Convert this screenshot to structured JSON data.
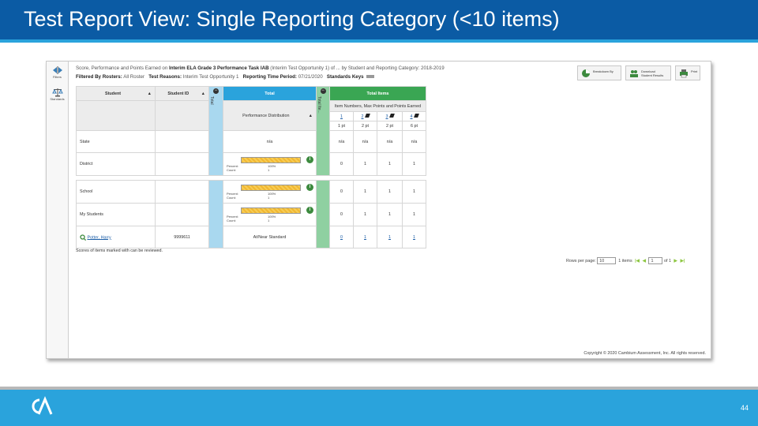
{
  "slide": {
    "title": "Test Report View: Single Reporting Category (<10 items)",
    "page_number": "44"
  },
  "app": {
    "rail": [
      {
        "label": "Filters"
      },
      {
        "label": "Standards"
      }
    ],
    "header_line1": {
      "prefix": "Score, Performance and Points Earned on",
      "test": "Interim ELA Grade 3 Performance Task IAB",
      "suffix": "(Interim Test Opportunity 1) of ... by Student and Reporting Category: 2018-2019"
    },
    "header_line2": {
      "filtered_label": "Filtered By Rosters:",
      "filtered_value": "All Roster",
      "reasons_label": "Test Reasons:",
      "reasons_value": "Interim Test Opportunity 1",
      "period_label": "Reporting Time Period:",
      "period_value": "07/21/2020",
      "keys_label": "Standards Keys"
    },
    "toolbar": {
      "breakdown": "Breakdown By",
      "download_line1": "Download",
      "download_line2": "Student Results",
      "print": "Print"
    },
    "table": {
      "col_student": "Student",
      "col_student_id": "Student ID",
      "col_total": "Total",
      "col_total_items": "Total Items",
      "strip_total": "Total",
      "strip_items": "Total Ite...",
      "perf_dist": "Performance Distribution",
      "item_header": "Item Numbers, Max Points and Points Earned",
      "items": [
        {
          "num": "1",
          "pts": "1 pt"
        },
        {
          "num": "2",
          "pts": "2 pt"
        },
        {
          "num": "3",
          "pts": "2 pt"
        },
        {
          "num": "4",
          "pts": "6 pt"
        }
      ],
      "rows": [
        {
          "label": "State",
          "sid": "",
          "total": "n/a",
          "vals": [
            "n/a",
            "n/a",
            "n/a",
            "n/a"
          ],
          "bar": false
        },
        {
          "label": "District",
          "sid": "",
          "percent": "100%",
          "count": "1",
          "vals": [
            "0",
            "1",
            "1",
            "1"
          ],
          "bar": true
        },
        {
          "label": "School",
          "sid": "",
          "percent": "100%",
          "count": "1",
          "vals": [
            "0",
            "1",
            "1",
            "1"
          ],
          "bar": true
        },
        {
          "label": "My Students",
          "sid": "",
          "percent": "100%",
          "count": "1",
          "vals": [
            "0",
            "1",
            "1",
            "1"
          ],
          "bar": true
        },
        {
          "label": "Potter, Harry",
          "sid": "9999611",
          "total": "At/Near Standard",
          "vals": [
            "0",
            "1",
            "1",
            "1"
          ],
          "bar": false
        }
      ],
      "bar_percent_label": "Percent:",
      "bar_count_label": "Count:"
    },
    "footnote": "Scores of items marked with    can be reviewed.",
    "pager": {
      "rows_label": "Rows per page:",
      "rows_value": "10",
      "items_label": "1 items",
      "page_value": "1",
      "of_label": "of 1"
    },
    "copyright": "Copyright © 2020 Cambium Assessment, Inc. All rights reserved."
  }
}
